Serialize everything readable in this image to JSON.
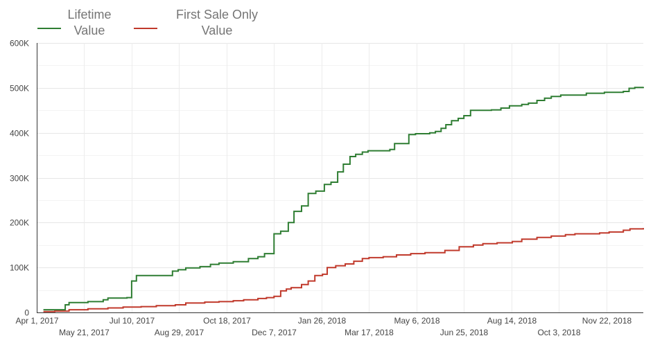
{
  "chart_data": {
    "type": "line",
    "style": "step",
    "title": "",
    "xlabel": "",
    "ylabel": "",
    "ylim": [
      0,
      600000
    ],
    "xlim": [
      "2017-04-01",
      "2018-12-31"
    ],
    "grid": true,
    "legend_position": "top-left",
    "y_ticks": [
      {
        "value": 0,
        "label": "0"
      },
      {
        "value": 100000,
        "label": "100K"
      },
      {
        "value": 200000,
        "label": "200K"
      },
      {
        "value": 300000,
        "label": "300K"
      },
      {
        "value": 400000,
        "label": "400K"
      },
      {
        "value": 500000,
        "label": "500K"
      },
      {
        "value": 600000,
        "label": "600K"
      }
    ],
    "x_ticks_top": [
      {
        "date": "2017-04-01",
        "label": "Apr 1, 2017"
      },
      {
        "date": "2017-07-10",
        "label": "Jul 10, 2017"
      },
      {
        "date": "2017-10-18",
        "label": "Oct 18, 2017"
      },
      {
        "date": "2018-01-26",
        "label": "Jan 26, 2018"
      },
      {
        "date": "2018-05-06",
        "label": "May 6, 2018"
      },
      {
        "date": "2018-08-14",
        "label": "Aug 14, 2018"
      },
      {
        "date": "2018-11-22",
        "label": "Nov 22, 2018"
      }
    ],
    "x_ticks_bottom": [
      {
        "date": "2017-05-21",
        "label": "May 21, 2017"
      },
      {
        "date": "2017-08-29",
        "label": "Aug 29, 2017"
      },
      {
        "date": "2017-12-07",
        "label": "Dec 7, 2017"
      },
      {
        "date": "2018-03-17",
        "label": "Mar 17, 2018"
      },
      {
        "date": "2018-06-25",
        "label": "Jun 25, 2018"
      },
      {
        "date": "2018-10-03",
        "label": "Oct 3, 2018"
      }
    ],
    "series": [
      {
        "name": "Lifetime Value",
        "legend_lines": [
          "Lifetime",
          "Value"
        ],
        "color": "#2e7d32",
        "points": [
          [
            "2017-04-08",
            6000
          ],
          [
            "2017-04-30",
            6000
          ],
          [
            "2017-05-01",
            17000
          ],
          [
            "2017-05-05",
            22000
          ],
          [
            "2017-05-25",
            24000
          ],
          [
            "2017-06-10",
            28000
          ],
          [
            "2017-06-15",
            32000
          ],
          [
            "2017-07-05",
            33000
          ],
          [
            "2017-07-10",
            70000
          ],
          [
            "2017-07-15",
            82000
          ],
          [
            "2017-08-20",
            82000
          ],
          [
            "2017-08-22",
            92000
          ],
          [
            "2017-08-28",
            95000
          ],
          [
            "2017-09-05",
            99000
          ],
          [
            "2017-09-20",
            102000
          ],
          [
            "2017-10-01",
            107000
          ],
          [
            "2017-10-10",
            110000
          ],
          [
            "2017-10-25",
            113000
          ],
          [
            "2017-11-10",
            120000
          ],
          [
            "2017-11-20",
            124000
          ],
          [
            "2017-11-27",
            131000
          ],
          [
            "2017-12-06",
            131000
          ],
          [
            "2017-12-07",
            175000
          ],
          [
            "2017-12-14",
            181000
          ],
          [
            "2017-12-22",
            200000
          ],
          [
            "2017-12-28",
            225000
          ],
          [
            "2018-01-05",
            237000
          ],
          [
            "2018-01-12",
            265000
          ],
          [
            "2018-01-20",
            270000
          ],
          [
            "2018-01-29",
            285000
          ],
          [
            "2018-02-05",
            290000
          ],
          [
            "2018-02-12",
            313000
          ],
          [
            "2018-02-18",
            330000
          ],
          [
            "2018-02-25",
            347000
          ],
          [
            "2018-03-03",
            352000
          ],
          [
            "2018-03-10",
            357000
          ],
          [
            "2018-03-16",
            360000
          ],
          [
            "2018-04-08",
            363000
          ],
          [
            "2018-04-13",
            376000
          ],
          [
            "2018-04-27",
            376000
          ],
          [
            "2018-04-28",
            396000
          ],
          [
            "2018-05-05",
            398000
          ],
          [
            "2018-05-20",
            400000
          ],
          [
            "2018-05-26",
            403000
          ],
          [
            "2018-06-01",
            410000
          ],
          [
            "2018-06-06",
            418000
          ],
          [
            "2018-06-12",
            427000
          ],
          [
            "2018-06-19",
            432000
          ],
          [
            "2018-06-25",
            438000
          ],
          [
            "2018-07-02",
            450000
          ],
          [
            "2018-07-24",
            451000
          ],
          [
            "2018-08-03",
            455000
          ],
          [
            "2018-08-12",
            460000
          ],
          [
            "2018-08-25",
            463000
          ],
          [
            "2018-09-01",
            466000
          ],
          [
            "2018-09-10",
            472000
          ],
          [
            "2018-09-18",
            477000
          ],
          [
            "2018-09-25",
            481000
          ],
          [
            "2018-10-05",
            484000
          ],
          [
            "2018-11-01",
            488000
          ],
          [
            "2018-11-20",
            490000
          ],
          [
            "2018-12-10",
            492000
          ],
          [
            "2018-12-16",
            499000
          ],
          [
            "2018-12-22",
            501000
          ],
          [
            "2018-12-31",
            502000
          ]
        ]
      },
      {
        "name": "First Sale Only Value",
        "legend_lines": [
          "First Sale Only",
          "Value"
        ],
        "color": "#c0392b",
        "points": [
          [
            "2017-04-08",
            2000
          ],
          [
            "2017-04-20",
            3000
          ],
          [
            "2017-05-05",
            6000
          ],
          [
            "2017-05-25",
            8000
          ],
          [
            "2017-06-15",
            10000
          ],
          [
            "2017-07-01",
            12000
          ],
          [
            "2017-07-20",
            13000
          ],
          [
            "2017-08-05",
            15000
          ],
          [
            "2017-08-25",
            17000
          ],
          [
            "2017-09-05",
            21000
          ],
          [
            "2017-09-25",
            23000
          ],
          [
            "2017-10-10",
            24000
          ],
          [
            "2017-10-25",
            26000
          ],
          [
            "2017-11-05",
            28000
          ],
          [
            "2017-11-20",
            31000
          ],
          [
            "2017-11-29",
            33000
          ],
          [
            "2017-12-07",
            36000
          ],
          [
            "2017-12-14",
            48000
          ],
          [
            "2017-12-20",
            52000
          ],
          [
            "2017-12-25",
            55000
          ],
          [
            "2018-01-05",
            62000
          ],
          [
            "2018-01-12",
            70000
          ],
          [
            "2018-01-19",
            82000
          ],
          [
            "2018-01-27",
            85000
          ],
          [
            "2018-02-01",
            100000
          ],
          [
            "2018-02-10",
            104000
          ],
          [
            "2018-02-20",
            108000
          ],
          [
            "2018-03-01",
            114000
          ],
          [
            "2018-03-10",
            120000
          ],
          [
            "2018-03-17",
            122000
          ],
          [
            "2018-04-01",
            124000
          ],
          [
            "2018-04-15",
            128000
          ],
          [
            "2018-04-30",
            131000
          ],
          [
            "2018-05-15",
            133000
          ],
          [
            "2018-06-05",
            138000
          ],
          [
            "2018-06-20",
            146000
          ],
          [
            "2018-07-05",
            150000
          ],
          [
            "2018-07-15",
            153000
          ],
          [
            "2018-07-30",
            155000
          ],
          [
            "2018-08-15",
            158000
          ],
          [
            "2018-08-25",
            163000
          ],
          [
            "2018-09-10",
            167000
          ],
          [
            "2018-09-25",
            170000
          ],
          [
            "2018-10-10",
            173000
          ],
          [
            "2018-10-20",
            175000
          ],
          [
            "2018-11-15",
            177000
          ],
          [
            "2018-11-25",
            179000
          ],
          [
            "2018-12-10",
            183000
          ],
          [
            "2018-12-17",
            186000
          ],
          [
            "2018-12-31",
            188000
          ]
        ]
      }
    ]
  }
}
